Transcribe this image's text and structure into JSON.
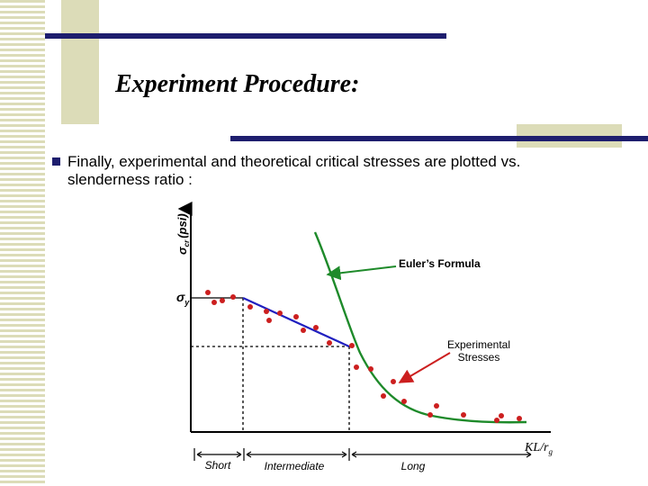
{
  "slide": {
    "title": "Experiment Procedure:",
    "bullet_line1": "Finally, experimental and theoretical critical stresses are plotted vs.",
    "bullet_line2": "slenderness ratio :"
  },
  "diagram": {
    "y_axis_label": "σcr (psi)",
    "y_axis_label_main": "σ",
    "y_axis_label_sub": "cr",
    "y_axis_label_unit": "(psi)",
    "yield_label_main": "σ",
    "yield_label_sub": "y",
    "x_axis_label_main": "KL/r",
    "x_axis_label_sub": "g",
    "euler_label": "Euler’s Formula",
    "experimental_label_line1": "Experimental",
    "experimental_label_line2": "Stresses",
    "region_short": "Short",
    "region_intermediate": "Intermediate",
    "region_long": "Long",
    "colors": {
      "points": "#cc1f1f",
      "euler_curve": "#1e8a2a",
      "intermediate_line": "#2020c0",
      "arrow": "#cc1f1f",
      "bars": "#1e1e6e",
      "accent": "#dcdcb8"
    }
  }
}
